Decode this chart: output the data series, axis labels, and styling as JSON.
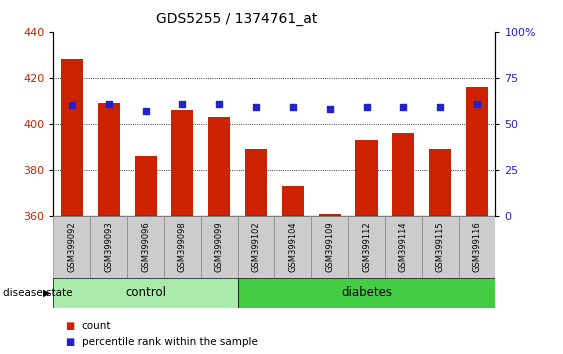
{
  "title": "GDS5255 / 1374761_at",
  "samples": [
    "GSM399092",
    "GSM399093",
    "GSM399096",
    "GSM399098",
    "GSM399099",
    "GSM399102",
    "GSM399104",
    "GSM399109",
    "GSM399112",
    "GSM399114",
    "GSM399115",
    "GSM399116"
  ],
  "counts": [
    428,
    409,
    386,
    406,
    403,
    389,
    373,
    361,
    393,
    396,
    389,
    416
  ],
  "percentiles": [
    60,
    61,
    57,
    61,
    61,
    59,
    59,
    58,
    59,
    59,
    59,
    61
  ],
  "ymin": 360,
  "ymax": 440,
  "yticks": [
    360,
    380,
    400,
    420,
    440
  ],
  "y2min": 0,
  "y2max": 100,
  "y2ticks": [
    0,
    25,
    50,
    75,
    100
  ],
  "y2ticklabels": [
    "0",
    "25",
    "50",
    "75",
    "100%"
  ],
  "bar_color": "#cc2200",
  "dot_color": "#2222cc",
  "plot_bg": "#ffffff",
  "tick_bg": "#cccccc",
  "control_color": "#aaeaaa",
  "diabetes_color": "#44cc44",
  "control_samples": 5,
  "diabetes_samples": 7,
  "control_label": "control",
  "diabetes_label": "diabetes",
  "legend_count_label": "count",
  "legend_pct_label": "percentile rank within the sample",
  "disease_state_label": "disease state",
  "left_ylabel_color": "#cc2200",
  "right_ylabel_color": "#2222cc"
}
